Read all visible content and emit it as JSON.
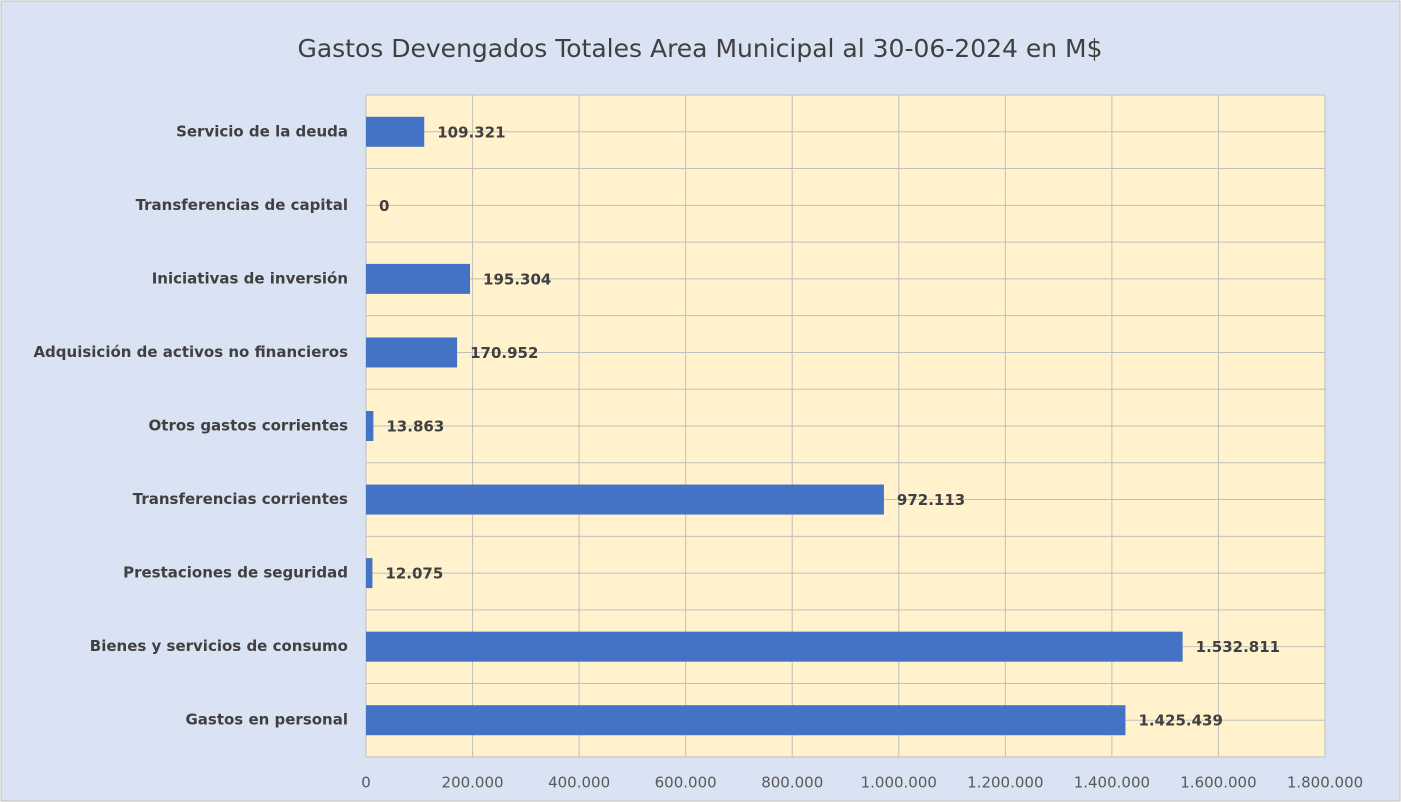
{
  "chart_data": {
    "type": "bar",
    "orientation": "horizontal",
    "title": "Gastos Devengados Totales Area Municipal al 30-06-2024 en M$",
    "categories": [
      "Gastos en personal",
      "Bienes y servicios de consumo",
      "Prestaciones de seguridad",
      "Transferencias corrientes",
      "Otros gastos corrientes",
      "Adquisición de activos no financieros",
      "Iniciativas de inversión",
      "Transferencias de capital",
      "Servicio de la deuda"
    ],
    "values": [
      1425439,
      1532811,
      12075,
      972113,
      13863,
      170952,
      195304,
      0,
      109321
    ],
    "value_labels": [
      "1.425.439",
      "1.532.811",
      "12.075",
      "972.113",
      "13.863",
      "170.952",
      "195.304",
      "0",
      "109.321"
    ],
    "color": "#4472c4",
    "xlim": [
      0,
      1800000
    ],
    "xticks": [
      0,
      {
        "value": 200000,
        "label": "200.000"
      },
      {
        "value": 400000,
        "label": "400.000"
      },
      {
        "value": 600000,
        "label": "600.000"
      },
      {
        "value": 800000,
        "label": "800.000"
      },
      {
        "value": 1000000,
        "label": "1.000.000"
      },
      {
        "value": 1200000,
        "label": "1.200.000"
      },
      {
        "value": 1400000,
        "label": "1.400.000"
      },
      {
        "value": 1600000,
        "label": "1.600.000"
      },
      {
        "value": 1800000,
        "label": "1.800.000"
      }
    ],
    "grid": true
  }
}
